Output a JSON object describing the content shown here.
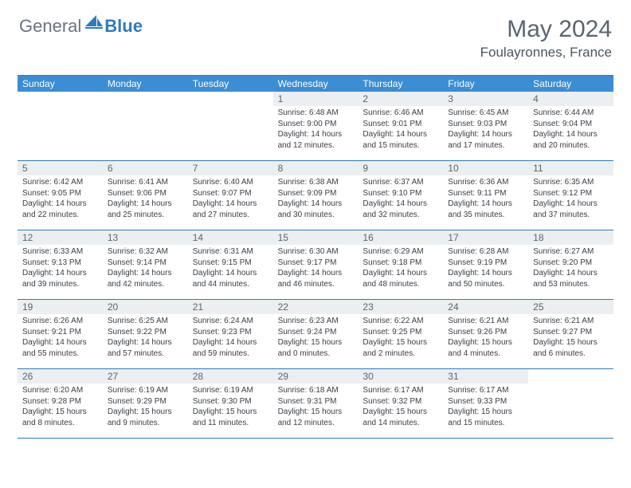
{
  "logo": {
    "general": "General",
    "blue": "Blue"
  },
  "title": "May 2024",
  "location": "Foulayronnes, France",
  "colors": {
    "header_bg": "#3b8dd4",
    "header_text": "#ffffff",
    "day_number_bg": "#eceff1",
    "day_number_text": "#5a6470",
    "content_text": "#3a3f45",
    "border": "#2c7bc2",
    "title_text": "#5a6470",
    "logo_blue": "#2c7bc2",
    "logo_gray": "#6b7280"
  },
  "day_names": [
    "Sunday",
    "Monday",
    "Tuesday",
    "Wednesday",
    "Thursday",
    "Friday",
    "Saturday"
  ],
  "weeks": [
    [
      {
        "num": "",
        "lines": []
      },
      {
        "num": "",
        "lines": []
      },
      {
        "num": "",
        "lines": []
      },
      {
        "num": "1",
        "lines": [
          "Sunrise: 6:48 AM",
          "Sunset: 9:00 PM",
          "Daylight: 14 hours",
          "and 12 minutes."
        ]
      },
      {
        "num": "2",
        "lines": [
          "Sunrise: 6:46 AM",
          "Sunset: 9:01 PM",
          "Daylight: 14 hours",
          "and 15 minutes."
        ]
      },
      {
        "num": "3",
        "lines": [
          "Sunrise: 6:45 AM",
          "Sunset: 9:03 PM",
          "Daylight: 14 hours",
          "and 17 minutes."
        ]
      },
      {
        "num": "4",
        "lines": [
          "Sunrise: 6:44 AM",
          "Sunset: 9:04 PM",
          "Daylight: 14 hours",
          "and 20 minutes."
        ]
      }
    ],
    [
      {
        "num": "5",
        "lines": [
          "Sunrise: 6:42 AM",
          "Sunset: 9:05 PM",
          "Daylight: 14 hours",
          "and 22 minutes."
        ]
      },
      {
        "num": "6",
        "lines": [
          "Sunrise: 6:41 AM",
          "Sunset: 9:06 PM",
          "Daylight: 14 hours",
          "and 25 minutes."
        ]
      },
      {
        "num": "7",
        "lines": [
          "Sunrise: 6:40 AM",
          "Sunset: 9:07 PM",
          "Daylight: 14 hours",
          "and 27 minutes."
        ]
      },
      {
        "num": "8",
        "lines": [
          "Sunrise: 6:38 AM",
          "Sunset: 9:09 PM",
          "Daylight: 14 hours",
          "and 30 minutes."
        ]
      },
      {
        "num": "9",
        "lines": [
          "Sunrise: 6:37 AM",
          "Sunset: 9:10 PM",
          "Daylight: 14 hours",
          "and 32 minutes."
        ]
      },
      {
        "num": "10",
        "lines": [
          "Sunrise: 6:36 AM",
          "Sunset: 9:11 PM",
          "Daylight: 14 hours",
          "and 35 minutes."
        ]
      },
      {
        "num": "11",
        "lines": [
          "Sunrise: 6:35 AM",
          "Sunset: 9:12 PM",
          "Daylight: 14 hours",
          "and 37 minutes."
        ]
      }
    ],
    [
      {
        "num": "12",
        "lines": [
          "Sunrise: 6:33 AM",
          "Sunset: 9:13 PM",
          "Daylight: 14 hours",
          "and 39 minutes."
        ]
      },
      {
        "num": "13",
        "lines": [
          "Sunrise: 6:32 AM",
          "Sunset: 9:14 PM",
          "Daylight: 14 hours",
          "and 42 minutes."
        ]
      },
      {
        "num": "14",
        "lines": [
          "Sunrise: 6:31 AM",
          "Sunset: 9:15 PM",
          "Daylight: 14 hours",
          "and 44 minutes."
        ]
      },
      {
        "num": "15",
        "lines": [
          "Sunrise: 6:30 AM",
          "Sunset: 9:17 PM",
          "Daylight: 14 hours",
          "and 46 minutes."
        ]
      },
      {
        "num": "16",
        "lines": [
          "Sunrise: 6:29 AM",
          "Sunset: 9:18 PM",
          "Daylight: 14 hours",
          "and 48 minutes."
        ]
      },
      {
        "num": "17",
        "lines": [
          "Sunrise: 6:28 AM",
          "Sunset: 9:19 PM",
          "Daylight: 14 hours",
          "and 50 minutes."
        ]
      },
      {
        "num": "18",
        "lines": [
          "Sunrise: 6:27 AM",
          "Sunset: 9:20 PM",
          "Daylight: 14 hours",
          "and 53 minutes."
        ]
      }
    ],
    [
      {
        "num": "19",
        "lines": [
          "Sunrise: 6:26 AM",
          "Sunset: 9:21 PM",
          "Daylight: 14 hours",
          "and 55 minutes."
        ]
      },
      {
        "num": "20",
        "lines": [
          "Sunrise: 6:25 AM",
          "Sunset: 9:22 PM",
          "Daylight: 14 hours",
          "and 57 minutes."
        ]
      },
      {
        "num": "21",
        "lines": [
          "Sunrise: 6:24 AM",
          "Sunset: 9:23 PM",
          "Daylight: 14 hours",
          "and 59 minutes."
        ]
      },
      {
        "num": "22",
        "lines": [
          "Sunrise: 6:23 AM",
          "Sunset: 9:24 PM",
          "Daylight: 15 hours",
          "and 0 minutes."
        ]
      },
      {
        "num": "23",
        "lines": [
          "Sunrise: 6:22 AM",
          "Sunset: 9:25 PM",
          "Daylight: 15 hours",
          "and 2 minutes."
        ]
      },
      {
        "num": "24",
        "lines": [
          "Sunrise: 6:21 AM",
          "Sunset: 9:26 PM",
          "Daylight: 15 hours",
          "and 4 minutes."
        ]
      },
      {
        "num": "25",
        "lines": [
          "Sunrise: 6:21 AM",
          "Sunset: 9:27 PM",
          "Daylight: 15 hours",
          "and 6 minutes."
        ]
      }
    ],
    [
      {
        "num": "26",
        "lines": [
          "Sunrise: 6:20 AM",
          "Sunset: 9:28 PM",
          "Daylight: 15 hours",
          "and 8 minutes."
        ]
      },
      {
        "num": "27",
        "lines": [
          "Sunrise: 6:19 AM",
          "Sunset: 9:29 PM",
          "Daylight: 15 hours",
          "and 9 minutes."
        ]
      },
      {
        "num": "28",
        "lines": [
          "Sunrise: 6:19 AM",
          "Sunset: 9:30 PM",
          "Daylight: 15 hours",
          "and 11 minutes."
        ]
      },
      {
        "num": "29",
        "lines": [
          "Sunrise: 6:18 AM",
          "Sunset: 9:31 PM",
          "Daylight: 15 hours",
          "and 12 minutes."
        ]
      },
      {
        "num": "30",
        "lines": [
          "Sunrise: 6:17 AM",
          "Sunset: 9:32 PM",
          "Daylight: 15 hours",
          "and 14 minutes."
        ]
      },
      {
        "num": "31",
        "lines": [
          "Sunrise: 6:17 AM",
          "Sunset: 9:33 PM",
          "Daylight: 15 hours",
          "and 15 minutes."
        ]
      },
      {
        "num": "",
        "lines": []
      }
    ]
  ]
}
